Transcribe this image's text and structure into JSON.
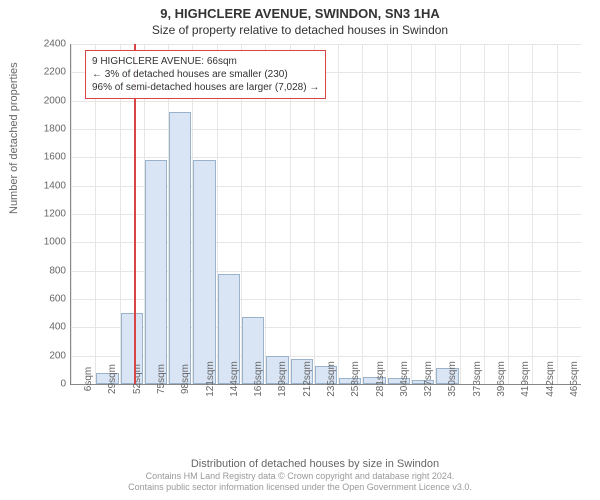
{
  "header": {
    "title": "9, HIGHCLERE AVENUE, SWINDON, SN3 1HA",
    "subtitle": "Size of property relative to detached houses in Swindon"
  },
  "chart": {
    "type": "histogram",
    "ylabel": "Number of detached properties",
    "xlabel": "Distribution of detached houses by size in Swindon",
    "ylim": [
      0,
      2400
    ],
    "ytick_step": 200,
    "background_color": "#ffffff",
    "grid_color": "#e6e6e6",
    "bar_color": "#d9e4f4",
    "bar_border_color": "#9bb2cb",
    "marker_color": "#d94545",
    "categories": [
      "6sqm",
      "29sqm",
      "52sqm",
      "75sqm",
      "98sqm",
      "121sqm",
      "144sqm",
      "166sqm",
      "189sqm",
      "212sqm",
      "235sqm",
      "258sqm",
      "281sqm",
      "304sqm",
      "327sqm",
      "350sqm",
      "373sqm",
      "396sqm",
      "419sqm",
      "442sqm",
      "465sqm"
    ],
    "values": [
      0,
      80,
      500,
      1580,
      1920,
      1580,
      780,
      470,
      200,
      180,
      130,
      40,
      50,
      40,
      30,
      110,
      0,
      0,
      0,
      0,
      0
    ],
    "marker_index": 2.6,
    "callout": {
      "line1": "9 HIGHCLERE AVENUE: 66sqm",
      "line2": "← 3% of detached houses are smaller (230)",
      "line3": "96% of semi-detached houses are larger (7,028) →"
    }
  },
  "attribution": {
    "line1": "Contains HM Land Registry data © Crown copyright and database right 2024.",
    "line2": "Contains public sector information licensed under the Open Government Licence v3.0."
  }
}
